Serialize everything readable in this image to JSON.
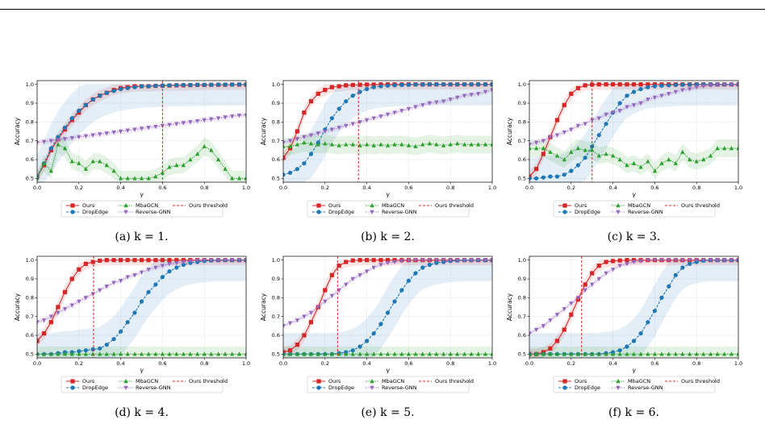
{
  "x_grid": [
    0,
    0.033,
    0.067,
    0.1,
    0.133,
    0.167,
    0.2,
    0.233,
    0.267,
    0.3,
    0.333,
    0.367,
    0.4,
    0.433,
    0.467,
    0.5,
    0.533,
    0.567,
    0.6,
    0.633,
    0.667,
    0.7,
    0.733,
    0.767,
    0.8,
    0.833,
    0.867,
    0.9,
    0.933,
    0.967,
    1.0
  ],
  "legend_labels": {
    "ours": "Ours",
    "dropedge": "DropEdge",
    "mbagcn": "MbaGCN",
    "reverse": "Reverse-GNN",
    "threshold": "Ours threshold"
  },
  "colors": {
    "ours": "#d62728",
    "dropedge": "#1f77b4",
    "mbagcn": "#2ca02c",
    "reverse": "#9467bd"
  },
  "chart_data": [
    {
      "type": "line",
      "caption": "(a) k = 1.",
      "xlabel": "γ",
      "ylabel": "Accuracy",
      "xlim": [
        0,
        1
      ],
      "ylim": [
        0.48,
        1.02
      ],
      "xticks": [
        "0.0",
        "0.2",
        "0.4",
        "0.6",
        "0.8",
        "1.0"
      ],
      "yticks": [
        "0.5",
        "0.6",
        "0.7",
        "0.8",
        "0.9",
        "1.0"
      ],
      "grid": true,
      "legend": "below",
      "threshold": 0.6,
      "series": [
        {
          "key": "ours",
          "values": [
            0.51,
            0.57,
            0.65,
            0.71,
            0.76,
            0.81,
            0.85,
            0.89,
            0.92,
            0.94,
            0.955,
            0.97,
            0.98,
            0.985,
            0.99,
            0.99,
            0.99,
            0.992,
            0.993,
            0.994,
            0.995,
            0.995,
            0.996,
            0.997,
            0.997,
            0.998,
            0.998,
            0.998,
            0.999,
            0.999,
            0.999
          ]
        },
        {
          "key": "dropedge",
          "values": [
            0.51,
            0.58,
            0.66,
            0.72,
            0.77,
            0.82,
            0.86,
            0.89,
            0.92,
            0.94,
            0.955,
            0.965,
            0.975,
            0.98,
            0.985,
            0.99,
            0.99,
            0.992,
            0.994,
            0.995,
            0.996,
            0.997,
            0.997,
            0.998,
            0.998,
            0.998,
            0.999,
            0.999,
            0.999,
            1.0,
            1.0
          ]
        },
        {
          "key": "mbagcn",
          "values": [
            0.5,
            0.58,
            0.54,
            0.68,
            0.66,
            0.59,
            0.58,
            0.55,
            0.59,
            0.59,
            0.57,
            0.54,
            0.5,
            0.5,
            0.5,
            0.5,
            0.5,
            0.51,
            0.53,
            0.56,
            0.57,
            0.57,
            0.6,
            0.63,
            0.67,
            0.65,
            0.6,
            0.55,
            0.5,
            0.5,
            0.5
          ]
        },
        {
          "key": "reverse",
          "values": [
            0.69,
            0.695,
            0.7,
            0.705,
            0.71,
            0.715,
            0.72,
            0.725,
            0.73,
            0.735,
            0.74,
            0.745,
            0.75,
            0.755,
            0.76,
            0.765,
            0.77,
            0.775,
            0.78,
            0.785,
            0.79,
            0.795,
            0.8,
            0.805,
            0.81,
            0.815,
            0.82,
            0.825,
            0.83,
            0.835,
            0.835
          ]
        }
      ]
    },
    {
      "type": "line",
      "caption": "(b) k = 2.",
      "xlabel": "γ",
      "ylabel": "Accuracy",
      "xlim": [
        0,
        1
      ],
      "ylim": [
        0.48,
        1.02
      ],
      "xticks": [
        "0.0",
        "0.2",
        "0.4",
        "0.6",
        "0.8",
        "1.0"
      ],
      "yticks": [
        "0.5",
        "0.6",
        "0.7",
        "0.8",
        "0.9",
        "1.0"
      ],
      "grid": true,
      "legend": "below",
      "threshold": 0.36,
      "series": [
        {
          "key": "ours",
          "values": [
            0.61,
            0.66,
            0.75,
            0.85,
            0.91,
            0.95,
            0.97,
            0.985,
            0.99,
            0.995,
            0.997,
            0.998,
            0.999,
            0.999,
            1.0,
            1.0,
            1.0,
            1.0,
            1.0,
            1.0,
            1.0,
            1.0,
            1.0,
            1.0,
            1.0,
            1.0,
            1.0,
            1.0,
            1.0,
            1.0,
            1.0
          ]
        },
        {
          "key": "dropedge",
          "values": [
            0.52,
            0.53,
            0.55,
            0.58,
            0.63,
            0.69,
            0.76,
            0.82,
            0.87,
            0.91,
            0.94,
            0.96,
            0.975,
            0.985,
            0.99,
            0.993,
            0.995,
            0.997,
            0.998,
            0.999,
            0.999,
            1.0,
            1.0,
            1.0,
            1.0,
            1.0,
            1.0,
            1.0,
            1.0,
            1.0,
            1.0
          ]
        },
        {
          "key": "mbagcn",
          "values": [
            0.67,
            0.67,
            0.68,
            0.69,
            0.685,
            0.68,
            0.685,
            0.68,
            0.675,
            0.68,
            0.68,
            0.675,
            0.68,
            0.675,
            0.68,
            0.675,
            0.68,
            0.68,
            0.675,
            0.67,
            0.68,
            0.685,
            0.68,
            0.675,
            0.68,
            0.685,
            0.68,
            0.68,
            0.68,
            0.68,
            0.68
          ]
        },
        {
          "key": "reverse",
          "values": [
            0.69,
            0.7,
            0.71,
            0.72,
            0.73,
            0.74,
            0.75,
            0.76,
            0.77,
            0.78,
            0.79,
            0.8,
            0.81,
            0.82,
            0.83,
            0.84,
            0.85,
            0.86,
            0.87,
            0.88,
            0.89,
            0.9,
            0.905,
            0.91,
            0.92,
            0.93,
            0.94,
            0.945,
            0.95,
            0.96,
            0.97
          ]
        }
      ]
    },
    {
      "type": "line",
      "caption": "(c) k = 3.",
      "xlabel": "γ",
      "ylabel": "Accuracy",
      "xlim": [
        0,
        1
      ],
      "ylim": [
        0.48,
        1.02
      ],
      "xticks": [
        "0.0",
        "0.2",
        "0.4",
        "0.6",
        "0.8",
        "1.0"
      ],
      "yticks": [
        "0.5",
        "0.6",
        "0.7",
        "0.8",
        "0.9",
        "1.0"
      ],
      "grid": true,
      "legend": "below",
      "threshold": 0.3,
      "series": [
        {
          "key": "ours",
          "values": [
            0.51,
            0.55,
            0.63,
            0.72,
            0.81,
            0.89,
            0.95,
            0.98,
            0.995,
            0.999,
            1.0,
            1.0,
            1.0,
            1.0,
            1.0,
            1.0,
            1.0,
            1.0,
            1.0,
            1.0,
            1.0,
            1.0,
            1.0,
            1.0,
            1.0,
            1.0,
            1.0,
            1.0,
            1.0,
            1.0,
            1.0
          ]
        },
        {
          "key": "dropedge",
          "values": [
            0.5,
            0.5,
            0.505,
            0.51,
            0.51,
            0.52,
            0.54,
            0.57,
            0.61,
            0.67,
            0.73,
            0.79,
            0.85,
            0.9,
            0.94,
            0.96,
            0.975,
            0.985,
            0.99,
            0.993,
            0.995,
            0.997,
            0.998,
            0.999,
            1.0,
            1.0,
            1.0,
            1.0,
            1.0,
            1.0,
            1.0
          ]
        },
        {
          "key": "mbagcn",
          "values": [
            0.66,
            0.66,
            0.66,
            0.64,
            0.62,
            0.6,
            0.64,
            0.66,
            0.65,
            0.65,
            0.62,
            0.63,
            0.62,
            0.6,
            0.57,
            0.58,
            0.56,
            0.59,
            0.54,
            0.58,
            0.6,
            0.58,
            0.64,
            0.6,
            0.59,
            0.6,
            0.62,
            0.66,
            0.66,
            0.66,
            0.66
          ]
        },
        {
          "key": "reverse",
          "values": [
            0.68,
            0.69,
            0.7,
            0.72,
            0.73,
            0.745,
            0.76,
            0.78,
            0.79,
            0.81,
            0.82,
            0.84,
            0.85,
            0.86,
            0.88,
            0.89,
            0.9,
            0.92,
            0.93,
            0.94,
            0.95,
            0.96,
            0.97,
            0.975,
            0.985,
            0.99,
            0.995,
            0.998,
            0.999,
            1.0,
            1.0
          ]
        }
      ]
    },
    {
      "type": "line",
      "caption": "(d) k = 4.",
      "xlabel": "γ",
      "ylabel": "Accuracy",
      "xlim": [
        0,
        1
      ],
      "ylim": [
        0.48,
        1.02
      ],
      "xticks": [
        "0.0",
        "0.2",
        "0.4",
        "0.6",
        "0.8",
        "1.0"
      ],
      "yticks": [
        "0.5",
        "0.6",
        "0.7",
        "0.8",
        "0.9",
        "1.0"
      ],
      "grid": true,
      "legend": "below",
      "threshold": 0.27,
      "series": [
        {
          "key": "ours",
          "values": [
            0.57,
            0.61,
            0.67,
            0.75,
            0.83,
            0.9,
            0.95,
            0.98,
            0.99,
            0.997,
            1.0,
            1.0,
            1.0,
            1.0,
            1.0,
            1.0,
            1.0,
            1.0,
            1.0,
            1.0,
            1.0,
            1.0,
            1.0,
            1.0,
            1.0,
            1.0,
            1.0,
            1.0,
            1.0,
            1.0,
            1.0
          ]
        },
        {
          "key": "dropedge",
          "values": [
            0.5,
            0.5,
            0.5,
            0.505,
            0.51,
            0.51,
            0.515,
            0.52,
            0.525,
            0.53,
            0.55,
            0.58,
            0.62,
            0.67,
            0.72,
            0.78,
            0.83,
            0.87,
            0.91,
            0.94,
            0.96,
            0.975,
            0.985,
            0.99,
            0.995,
            0.998,
            1.0,
            1.0,
            1.0,
            1.0,
            1.0
          ]
        },
        {
          "key": "mbagcn",
          "values": [
            0.5,
            0.5,
            0.5,
            0.5,
            0.5,
            0.5,
            0.5,
            0.5,
            0.5,
            0.5,
            0.5,
            0.5,
            0.5,
            0.5,
            0.5,
            0.5,
            0.5,
            0.5,
            0.5,
            0.5,
            0.5,
            0.5,
            0.5,
            0.5,
            0.5,
            0.5,
            0.5,
            0.5,
            0.5,
            0.5,
            0.5
          ]
        },
        {
          "key": "reverse",
          "values": [
            0.67,
            0.68,
            0.7,
            0.72,
            0.74,
            0.76,
            0.78,
            0.8,
            0.82,
            0.84,
            0.86,
            0.88,
            0.89,
            0.91,
            0.92,
            0.935,
            0.95,
            0.96,
            0.97,
            0.98,
            0.985,
            0.99,
            0.995,
            0.998,
            1.0,
            1.0,
            1.0,
            1.0,
            1.0,
            1.0,
            1.0
          ]
        }
      ]
    },
    {
      "type": "line",
      "caption": "(e) k = 5.",
      "xlabel": "γ",
      "ylabel": "Accuracy",
      "xlim": [
        0,
        1
      ],
      "ylim": [
        0.48,
        1.02
      ],
      "xticks": [
        "0.0",
        "0.2",
        "0.4",
        "0.6",
        "0.8",
        "1.0"
      ],
      "yticks": [
        "0.5",
        "0.6",
        "0.7",
        "0.8",
        "0.9",
        "1.0"
      ],
      "grid": true,
      "legend": "below",
      "threshold": 0.26,
      "series": [
        {
          "key": "ours",
          "values": [
            0.51,
            0.52,
            0.55,
            0.6,
            0.67,
            0.75,
            0.84,
            0.92,
            0.97,
            0.99,
            0.998,
            1.0,
            1.0,
            1.0,
            1.0,
            1.0,
            1.0,
            1.0,
            1.0,
            1.0,
            1.0,
            1.0,
            1.0,
            1.0,
            1.0,
            1.0,
            1.0,
            1.0,
            1.0,
            1.0,
            1.0
          ]
        },
        {
          "key": "dropedge",
          "values": [
            0.5,
            0.5,
            0.5,
            0.5,
            0.5,
            0.5,
            0.5,
            0.5,
            0.505,
            0.51,
            0.52,
            0.54,
            0.57,
            0.61,
            0.66,
            0.72,
            0.78,
            0.84,
            0.89,
            0.93,
            0.96,
            0.975,
            0.985,
            0.99,
            0.995,
            0.998,
            1.0,
            1.0,
            1.0,
            1.0,
            1.0
          ]
        },
        {
          "key": "mbagcn",
          "values": [
            0.5,
            0.5,
            0.5,
            0.5,
            0.5,
            0.5,
            0.5,
            0.5,
            0.5,
            0.5,
            0.5,
            0.5,
            0.5,
            0.5,
            0.5,
            0.5,
            0.5,
            0.5,
            0.5,
            0.5,
            0.5,
            0.5,
            0.5,
            0.5,
            0.5,
            0.5,
            0.5,
            0.5,
            0.5,
            0.5,
            0.5
          ]
        },
        {
          "key": "reverse",
          "values": [
            0.65,
            0.665,
            0.68,
            0.7,
            0.72,
            0.75,
            0.78,
            0.81,
            0.84,
            0.87,
            0.9,
            0.92,
            0.94,
            0.96,
            0.975,
            0.985,
            0.99,
            0.995,
            0.998,
            1.0,
            1.0,
            1.0,
            1.0,
            1.0,
            1.0,
            1.0,
            1.0,
            1.0,
            1.0,
            1.0,
            1.0
          ]
        }
      ]
    },
    {
      "type": "line",
      "caption": "(f) k = 6.",
      "xlabel": "γ",
      "ylabel": "Accuracy",
      "xlim": [
        0,
        1
      ],
      "ylim": [
        0.48,
        1.02
      ],
      "xticks": [
        "0.0",
        "0.2",
        "0.4",
        "0.6",
        "0.8",
        "1.0"
      ],
      "yticks": [
        "0.5",
        "0.6",
        "0.7",
        "0.8",
        "0.9",
        "1.0"
      ],
      "grid": true,
      "legend": "below",
      "threshold": 0.25,
      "series": [
        {
          "key": "ours",
          "values": [
            0.5,
            0.5,
            0.51,
            0.53,
            0.57,
            0.63,
            0.71,
            0.79,
            0.87,
            0.93,
            0.97,
            0.99,
            0.995,
            0.998,
            1.0,
            1.0,
            1.0,
            1.0,
            1.0,
            1.0,
            1.0,
            1.0,
            1.0,
            1.0,
            1.0,
            1.0,
            1.0,
            1.0,
            1.0,
            1.0,
            1.0
          ]
        },
        {
          "key": "dropedge",
          "values": [
            0.5,
            0.5,
            0.5,
            0.5,
            0.5,
            0.5,
            0.5,
            0.5,
            0.5,
            0.5,
            0.5,
            0.505,
            0.51,
            0.52,
            0.54,
            0.57,
            0.61,
            0.67,
            0.73,
            0.8,
            0.86,
            0.92,
            0.96,
            0.98,
            0.99,
            0.997,
            1.0,
            1.0,
            1.0,
            1.0,
            1.0
          ]
        },
        {
          "key": "mbagcn",
          "values": [
            0.5,
            0.5,
            0.5,
            0.5,
            0.5,
            0.5,
            0.5,
            0.5,
            0.5,
            0.5,
            0.5,
            0.5,
            0.5,
            0.5,
            0.5,
            0.5,
            0.5,
            0.5,
            0.5,
            0.5,
            0.5,
            0.5,
            0.5,
            0.5,
            0.5,
            0.5,
            0.5,
            0.5,
            0.5,
            0.5,
            0.5
          ]
        },
        {
          "key": "reverse",
          "values": [
            0.61,
            0.63,
            0.65,
            0.68,
            0.71,
            0.74,
            0.77,
            0.8,
            0.84,
            0.87,
            0.9,
            0.93,
            0.95,
            0.97,
            0.98,
            0.99,
            0.995,
            1.0,
            1.0,
            1.0,
            1.0,
            1.0,
            1.0,
            1.0,
            1.0,
            1.0,
            1.0,
            1.0,
            1.0,
            1.0,
            1.0
          ]
        }
      ]
    }
  ]
}
